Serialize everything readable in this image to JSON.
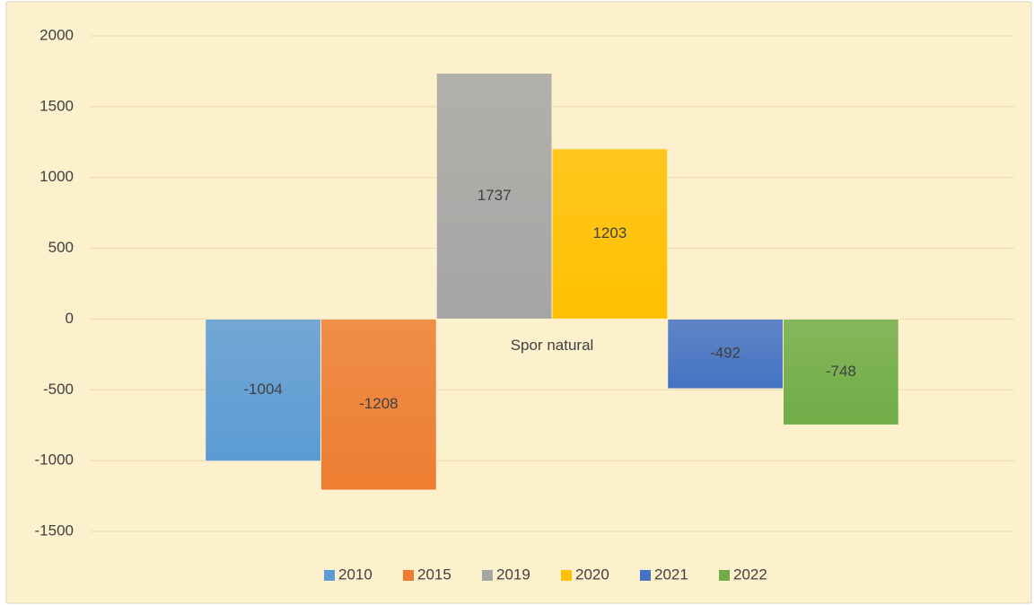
{
  "chart_data": {
    "type": "bar",
    "categories": [
      "Spor natural"
    ],
    "series": [
      {
        "name": "2010",
        "color": "#5b9bd5",
        "values": [
          -1004
        ]
      },
      {
        "name": "2015",
        "color": "#ed7d31",
        "values": [
          -1208
        ]
      },
      {
        "name": "2019",
        "color": "#a5a5a5",
        "values": [
          1737
        ]
      },
      {
        "name": "2020",
        "color": "#ffc000",
        "values": [
          1203
        ]
      },
      {
        "name": "2021",
        "color": "#4472c4",
        "values": [
          -492
        ]
      },
      {
        "name": "2022",
        "color": "#70ad47",
        "values": [
          -748
        ]
      }
    ],
    "ylim": [
      -1500,
      2000
    ],
    "yticks": [
      -1500,
      -1000,
      -500,
      0,
      500,
      1000,
      1500,
      2000
    ],
    "grid": true,
    "legend": "bottom"
  }
}
